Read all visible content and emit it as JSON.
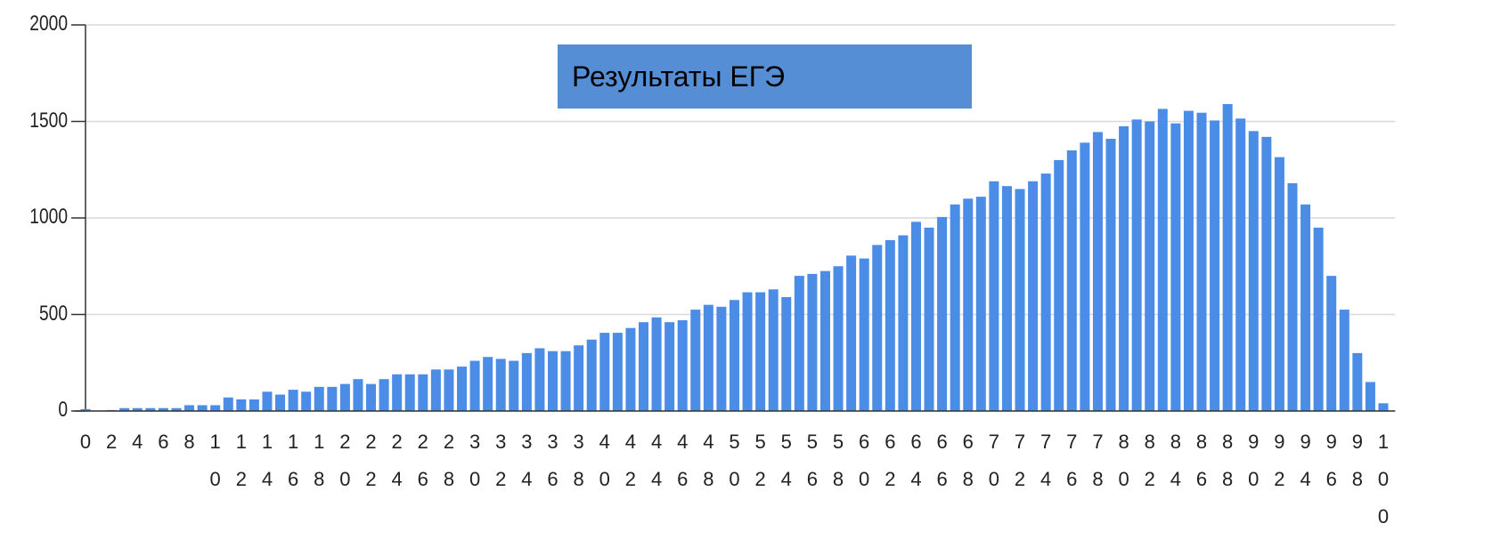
{
  "chart_data": {
    "type": "bar",
    "title": "Результаты ЕГЭ",
    "categories": [
      "0",
      null,
      "2",
      null,
      "4",
      null,
      "6",
      null,
      "8",
      null,
      "10",
      null,
      "12",
      null,
      "14",
      null,
      "16",
      null,
      "18",
      null,
      "20",
      null,
      "22",
      null,
      "24",
      null,
      "26",
      null,
      "28",
      null,
      "30",
      null,
      "32",
      null,
      "34",
      null,
      "36",
      null,
      "38",
      null,
      "40",
      null,
      "42",
      null,
      "44",
      null,
      "46",
      null,
      "48",
      null,
      "50",
      null,
      "52",
      null,
      "54",
      null,
      "56",
      null,
      "58",
      null,
      "60",
      null,
      "62",
      null,
      "64",
      null,
      "66",
      null,
      "68",
      null,
      "70",
      null,
      "72",
      null,
      "74",
      null,
      "76",
      null,
      "78",
      null,
      "80",
      null,
      "82",
      null,
      "84",
      null,
      "86",
      null,
      "88",
      null,
      "90",
      null,
      "92",
      null,
      "94",
      null,
      "96",
      null,
      "98",
      null,
      "100"
    ],
    "values": [
      10,
      0,
      5,
      15,
      15,
      15,
      15,
      15,
      30,
      30,
      30,
      70,
      60,
      60,
      100,
      85,
      110,
      100,
      125,
      125,
      140,
      165,
      140,
      165,
      190,
      190,
      190,
      215,
      215,
      230,
      260,
      280,
      270,
      260,
      300,
      325,
      310,
      310,
      340,
      370,
      405,
      405,
      430,
      460,
      485,
      460,
      470,
      525,
      550,
      540,
      575,
      615,
      615,
      630,
      590,
      700,
      710,
      725,
      750,
      805,
      790,
      860,
      885,
      910,
      980,
      950,
      1005,
      1070,
      1100,
      1110,
      1190,
      1165,
      1150,
      1190,
      1230,
      1300,
      1350,
      1390,
      1445,
      1410,
      1475,
      1510,
      1500,
      1565,
      1490,
      1555,
      1545,
      1505,
      1590,
      1515,
      1450,
      1420,
      1315,
      1180,
      1070,
      950,
      700,
      525,
      300,
      150,
      40
    ],
    "color": "#4a8ce6",
    "ylim": [
      0,
      2000
    ],
    "yticks": [
      0,
      500,
      1000,
      1500,
      2000
    ],
    "grid": true
  }
}
